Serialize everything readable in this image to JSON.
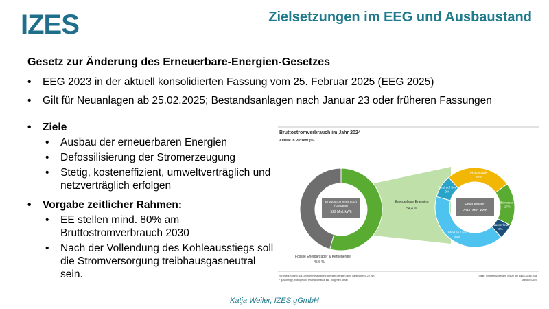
{
  "logo": "IZES",
  "title": "Zielsetzungen im EEG und Ausbaustand",
  "heading": "Gesetz zur Änderung des Erneuerbare-Energien-Gesetzes",
  "bullets": [
    "EEG 2023 in der aktuell konsolidierten Fassung vom 25. Februar 2025 (EEG 2025)",
    "Gilt für Neuanlagen ab 25.02.2025; Bestandsanlagen nach Januar 23 oder früheren Fassungen"
  ],
  "sections": [
    {
      "title": "Ziele",
      "items": [
        "Ausbau der erneuerbaren Energien",
        "Defossilisierung der Stromerzeugung",
        "Stetig, kosteneffizient, umweltverträglich und netzverträglich erfolgen"
      ]
    },
    {
      "title": "Vorgabe zeitlicher Rahmen:",
      "items": [
        "EE stellen mind. 80% am Bruttostromverbrauch 2030",
        "Nach der Vollendung des Kohleausstiegs soll die Stromversorgung treibhausgasneutral sein."
      ]
    }
  ],
  "figure": {
    "title": "Bruttostromverbrauch im Jahr 2024",
    "subtitle": "Anteile in Prozent (%)",
    "total": {
      "label": "Bruttostromverbrauch",
      "sublabel": "(Gesamt)",
      "value_label": "522 Mrd. kWh"
    },
    "shares": [
      {
        "name": "Erneuerbare Energien",
        "value": 54.4,
        "value_label": "54,4 %",
        "color": "#5aab32"
      },
      {
        "name": "Fossile Energieträger & Kernenergie",
        "value": 45.6,
        "value_label": "45,6 %",
        "color": "#6e6e6e"
      }
    ],
    "renewables": {
      "label": "Erneuerbare:",
      "value_label": "284,0 Mrd. kWh",
      "sources": [
        {
          "name": "Photovoltaik",
          "value": 26,
          "value_label": "26%",
          "color": "#f2b705"
        },
        {
          "name": "Biomasse¹",
          "value": 17,
          "value_label": "17%",
          "color": "#5aab32"
        },
        {
          "name": "Wasserkraft",
          "value": 6,
          "value_label": "6%",
          "color": "#1a4f7a"
        },
        {
          "name": "Wind an Land",
          "value": 40,
          "value_label": "40%",
          "color": "#4ec3f0"
        },
        {
          "name": "Wind auf See",
          "value": 9,
          "value_label": "9%",
          "color": "#2aa3c8"
        }
      ]
    },
    "notes": [
      "Stromerzeugung aus Geothermie aufgrund geringer Mengen nicht dargestellt (0,2 TWh)",
      "¹ gasförmige, flüssige und feste Biomasse inkl. biogenen Abfall"
    ],
    "source": "Quelle: Umweltbundesamt (UBA) auf Basis AGEE-Stat",
    "date": "Stand 02/2025"
  },
  "footer": "Katja Weiler, IZES gGmbH"
}
